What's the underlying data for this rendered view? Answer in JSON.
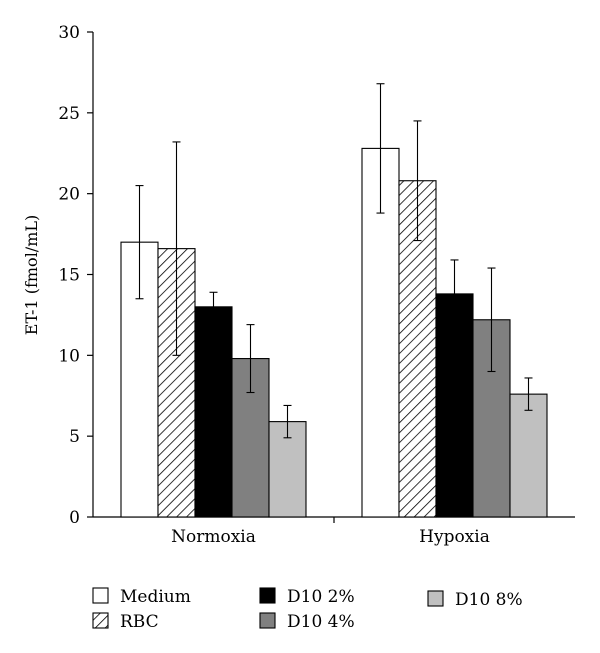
{
  "chart_data": {
    "type": "bar",
    "title": "",
    "xlabel": "",
    "ylabel": "ET-1 (fmol/mL)",
    "ylim": [
      0,
      30
    ],
    "yticks": [
      0,
      5,
      10,
      15,
      20,
      25,
      30
    ],
    "grid": false,
    "legend_position": "bottom",
    "categories": [
      "Normoxia",
      "Hypoxia"
    ],
    "series": [
      {
        "name": "Medium",
        "fill": "#ffffff",
        "pattern": "none",
        "values": [
          17.0,
          22.8
        ],
        "errors": [
          3.5,
          4.0
        ]
      },
      {
        "name": "RBC",
        "fill": "#ffffff",
        "pattern": "hatch",
        "values": [
          16.6,
          20.8
        ],
        "errors": [
          6.6,
          3.7
        ]
      },
      {
        "name": "D10 2%",
        "fill": "#000000",
        "pattern": "none",
        "values": [
          13.0,
          13.8
        ],
        "errors": [
          0.9,
          2.1
        ]
      },
      {
        "name": "D10 4%",
        "fill": "#808080",
        "pattern": "none",
        "values": [
          9.8,
          12.2
        ],
        "errors": [
          2.1,
          3.2
        ]
      },
      {
        "name": "D10 8%",
        "fill": "#c0c0c0",
        "pattern": "none",
        "values": [
          5.9,
          7.6
        ],
        "errors": [
          1.0,
          1.0
        ]
      }
    ]
  }
}
